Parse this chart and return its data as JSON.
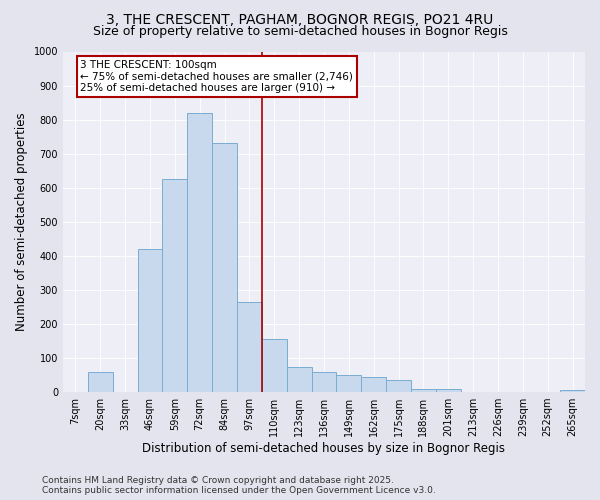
{
  "title1": "3, THE CRESCENT, PAGHAM, BOGNOR REGIS, PO21 4RU",
  "title2": "Size of property relative to semi-detached houses in Bognor Regis",
  "xlabel": "Distribution of semi-detached houses by size in Bognor Regis",
  "ylabel": "Number of semi-detached properties",
  "categories": [
    "7sqm",
    "20sqm",
    "33sqm",
    "46sqm",
    "59sqm",
    "72sqm",
    "84sqm",
    "97sqm",
    "110sqm",
    "123sqm",
    "136sqm",
    "149sqm",
    "162sqm",
    "175sqm",
    "188sqm",
    "201sqm",
    "213sqm",
    "226sqm",
    "239sqm",
    "252sqm",
    "265sqm"
  ],
  "values": [
    0,
    60,
    0,
    420,
    625,
    820,
    730,
    265,
    155,
    75,
    60,
    50,
    45,
    35,
    10,
    10,
    0,
    0,
    0,
    0,
    5
  ],
  "bar_color": "#c8d9ee",
  "bar_edge_color": "#7aadd4",
  "vline_color": "#aa0000",
  "annotation_text": "3 THE CRESCENT: 100sqm\n← 75% of semi-detached houses are smaller (2,746)\n25% of semi-detached houses are larger (910) →",
  "annotation_box_color": "#ffffff",
  "annotation_box_edge_color": "#aa0000",
  "ylim": [
    0,
    1000
  ],
  "yticks": [
    0,
    100,
    200,
    300,
    400,
    500,
    600,
    700,
    800,
    900,
    1000
  ],
  "background_color": "#e4e4ef",
  "plot_background_color": "#eeeef7",
  "grid_color": "#ffffff",
  "footer": "Contains HM Land Registry data © Crown copyright and database right 2025.\nContains public sector information licensed under the Open Government Licence v3.0.",
  "title_fontsize": 10,
  "subtitle_fontsize": 9,
  "axis_label_fontsize": 8.5,
  "tick_fontsize": 7,
  "annotation_fontsize": 7.5,
  "footer_fontsize": 6.5
}
